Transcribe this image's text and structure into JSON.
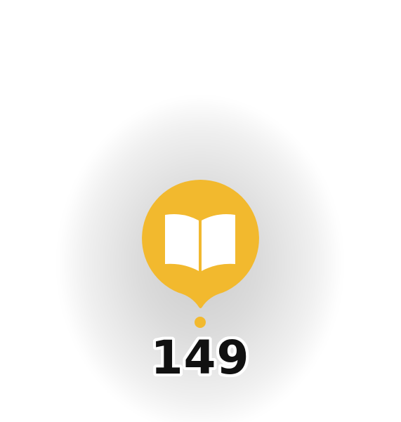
{
  "pin": {
    "icon": "open-book-icon",
    "color": "#F2B92E",
    "count": "149"
  }
}
